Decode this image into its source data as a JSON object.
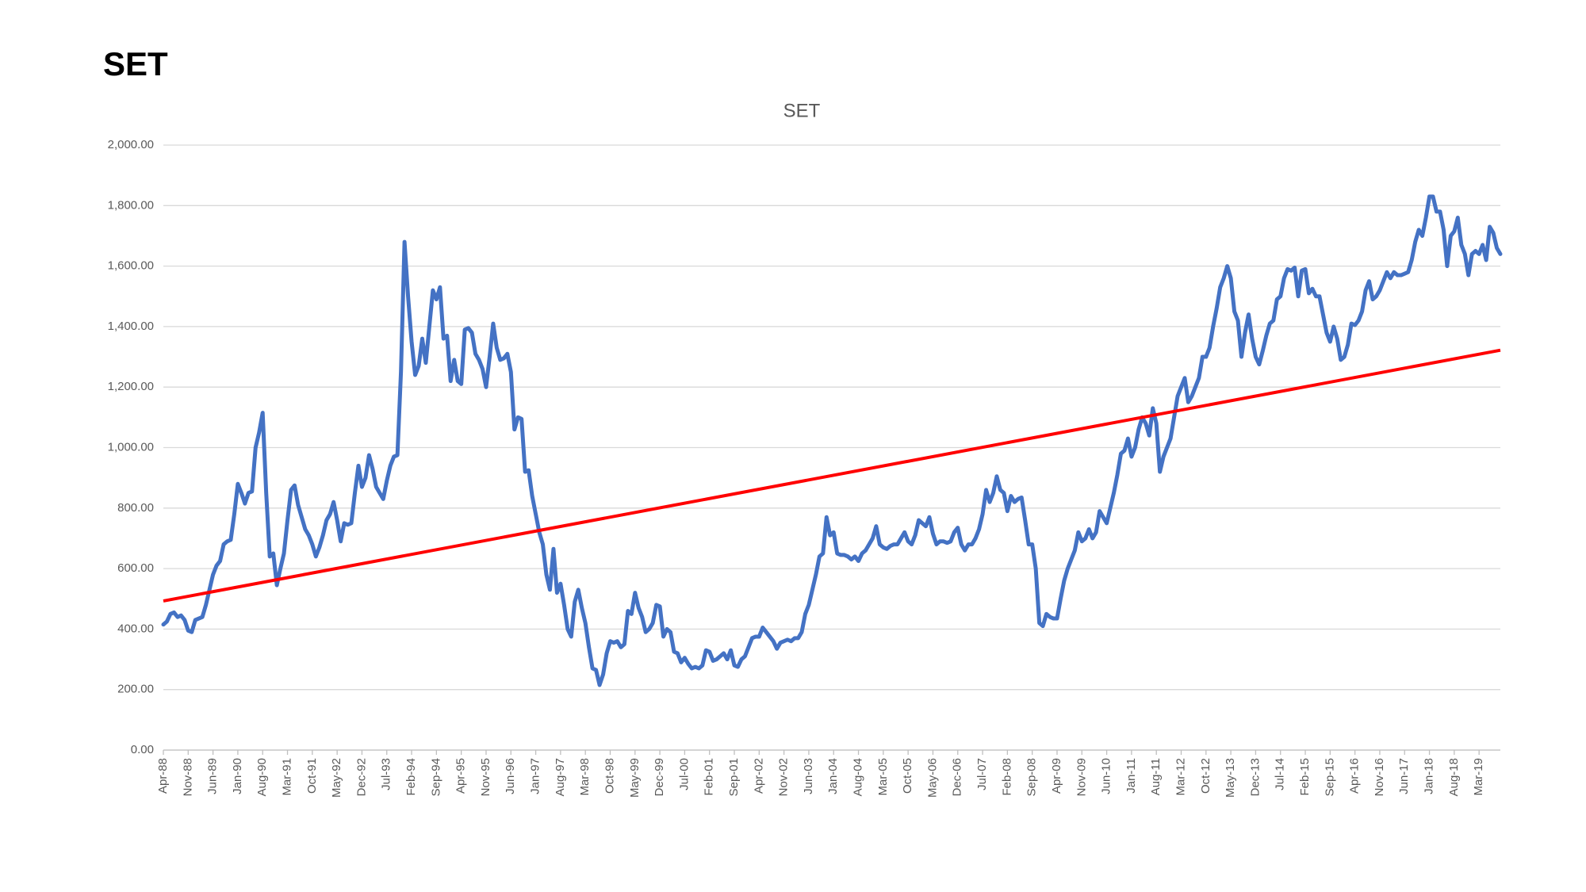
{
  "heading": "SET",
  "chart_data": {
    "type": "line",
    "title": "SET",
    "categories": [
      "Apr-88",
      null,
      null,
      null,
      null,
      null,
      null,
      "Nov-88",
      null,
      null,
      null,
      null,
      null,
      null,
      "Jun-89",
      null,
      null,
      null,
      null,
      null,
      null,
      "Jan-90",
      null,
      null,
      null,
      null,
      null,
      null,
      "Aug-90",
      null,
      null,
      null,
      null,
      null,
      null,
      "Mar-91",
      null,
      null,
      null,
      null,
      null,
      null,
      "Oct-91",
      null,
      null,
      null,
      null,
      null,
      null,
      "May-92",
      null,
      null,
      null,
      null,
      null,
      null,
      "Dec-92",
      null,
      null,
      null,
      null,
      null,
      null,
      "Jul-93",
      null,
      null,
      null,
      null,
      null,
      null,
      "Feb-94",
      null,
      null,
      null,
      null,
      null,
      null,
      "Sep-94",
      null,
      null,
      null,
      null,
      null,
      null,
      "Apr-95",
      null,
      null,
      null,
      null,
      null,
      null,
      "Nov-95",
      null,
      null,
      null,
      null,
      null,
      null,
      "Jun-96",
      null,
      null,
      null,
      null,
      null,
      null,
      "Jan-97",
      null,
      null,
      null,
      null,
      null,
      null,
      "Aug-97",
      null,
      null,
      null,
      null,
      null,
      null,
      "Mar-98",
      null,
      null,
      null,
      null,
      null,
      null,
      "Oct-98",
      null,
      null,
      null,
      null,
      null,
      null,
      "May-99",
      null,
      null,
      null,
      null,
      null,
      null,
      "Dec-99",
      null,
      null,
      null,
      null,
      null,
      null,
      "Jul-00",
      null,
      null,
      null,
      null,
      null,
      null,
      "Feb-01",
      null,
      null,
      null,
      null,
      null,
      null,
      "Sep-01",
      null,
      null,
      null,
      null,
      null,
      null,
      "Apr-02",
      null,
      null,
      null,
      null,
      null,
      null,
      "Nov-02",
      null,
      null,
      null,
      null,
      null,
      null,
      "Jun-03",
      null,
      null,
      null,
      null,
      null,
      null,
      "Jan-04",
      null,
      null,
      null,
      null,
      null,
      null,
      "Aug-04",
      null,
      null,
      null,
      null,
      null,
      null,
      "Mar-05",
      null,
      null,
      null,
      null,
      null,
      null,
      "Oct-05",
      null,
      null,
      null,
      null,
      null,
      null,
      "May-06",
      null,
      null,
      null,
      null,
      null,
      null,
      "Dec-06",
      null,
      null,
      null,
      null,
      null,
      null,
      "Jul-07",
      null,
      null,
      null,
      null,
      null,
      null,
      "Feb-08",
      null,
      null,
      null,
      null,
      null,
      null,
      "Sep-08",
      null,
      null,
      null,
      null,
      null,
      null,
      "Apr-09",
      null,
      null,
      null,
      null,
      null,
      null,
      "Nov-09",
      null,
      null,
      null,
      null,
      null,
      null,
      "Jun-10",
      null,
      null,
      null,
      null,
      null,
      null,
      "Jan-11",
      null,
      null,
      null,
      null,
      null,
      null,
      "Aug-11",
      null,
      null,
      null,
      null,
      null,
      null,
      "Mar-12",
      null,
      null,
      null,
      null,
      null,
      null,
      "Oct-12",
      null,
      null,
      null,
      null,
      null,
      null,
      "May-13",
      null,
      null,
      null,
      null,
      null,
      null,
      "Dec-13",
      null,
      null,
      null,
      null,
      null,
      null,
      "Jul-14",
      null,
      null,
      null,
      null,
      null,
      null,
      "Feb-15",
      null,
      null,
      null,
      null,
      null,
      null,
      "Sep-15",
      null,
      null,
      null,
      null,
      null,
      null,
      "Apr-16",
      null,
      null,
      null,
      null,
      null,
      null,
      "Nov-16",
      null,
      null,
      null,
      null,
      null,
      null,
      "Jun-17",
      null,
      null,
      null,
      null,
      null,
      null,
      "Jan-18",
      null,
      null,
      null,
      null,
      null,
      null,
      "Aug-18",
      null,
      null,
      null,
      null,
      null,
      null,
      "Mar-19",
      null,
      null,
      null,
      null,
      null,
      null
    ],
    "series": [
      {
        "color": "#4472c4",
        "values": [
          415,
          425,
          450,
          455,
          440,
          445,
          430,
          395,
          390,
          430,
          435,
          440,
          480,
          530,
          580,
          610,
          625,
          680,
          690,
          695,
          780,
          880,
          850,
          815,
          850,
          855,
          1000,
          1050,
          1115,
          850,
          640,
          650,
          545,
          600,
          650,
          760,
          860,
          875,
          810,
          770,
          730,
          710,
          680,
          640,
          670,
          710,
          760,
          780,
          820,
          760,
          690,
          750,
          745,
          750,
          850,
          940,
          870,
          900,
          975,
          930,
          870,
          850,
          830,
          890,
          940,
          970,
          975,
          1250,
          1680,
          1500,
          1350,
          1240,
          1270,
          1360,
          1280,
          1400,
          1520,
          1490,
          1530,
          1360,
          1370,
          1220,
          1290,
          1220,
          1210,
          1390,
          1395,
          1380,
          1310,
          1290,
          1260,
          1200,
          1300,
          1410,
          1330,
          1290,
          1295,
          1310,
          1250,
          1060,
          1100,
          1095,
          920,
          925,
          840,
          780,
          720,
          680,
          580,
          530,
          665,
          520,
          550,
          480,
          400,
          375,
          490,
          530,
          470,
          420,
          340,
          270,
          265,
          215,
          250,
          320,
          360,
          355,
          360,
          340,
          350,
          460,
          450,
          520,
          470,
          440,
          390,
          400,
          420,
          480,
          475,
          375,
          400,
          390,
          325,
          320,
          290,
          305,
          285,
          270,
          275,
          270,
          280,
          330,
          325,
          295,
          300,
          310,
          320,
          300,
          330,
          280,
          275,
          300,
          310,
          340,
          370,
          375,
          375,
          405,
          390,
          375,
          360,
          335,
          355,
          360,
          365,
          360,
          370,
          370,
          390,
          450,
          480,
          530,
          580,
          640,
          650,
          770,
          710,
          720,
          650,
          645,
          645,
          640,
          630,
          640,
          625,
          650,
          660,
          680,
          700,
          740,
          680,
          670,
          665,
          675,
          680,
          680,
          700,
          720,
          690,
          680,
          710,
          760,
          750,
          740,
          770,
          715,
          680,
          690,
          690,
          685,
          690,
          720,
          735,
          680,
          660,
          680,
          680,
          700,
          730,
          780,
          860,
          820,
          850,
          905,
          860,
          850,
          790,
          840,
          820,
          830,
          835,
          760,
          680,
          680,
          600,
          420,
          410,
          450,
          440,
          435,
          435,
          500,
          560,
          600,
          630,
          660,
          720,
          690,
          700,
          730,
          700,
          720,
          790,
          770,
          750,
          800,
          850,
          910,
          980,
          990,
          1030,
          970,
          1000,
          1060,
          1100,
          1080,
          1040,
          1130,
          1080,
          920,
          970,
          1000,
          1030,
          1100,
          1170,
          1200,
          1230,
          1150,
          1170,
          1200,
          1230,
          1300,
          1300,
          1330,
          1400,
          1460,
          1530,
          1560,
          1600,
          1560,
          1450,
          1420,
          1300,
          1380,
          1440,
          1360,
          1300,
          1275,
          1320,
          1370,
          1410,
          1420,
          1490,
          1500,
          1560,
          1590,
          1585,
          1595,
          1500,
          1585,
          1590,
          1510,
          1525,
          1500,
          1500,
          1440,
          1380,
          1350,
          1400,
          1360,
          1290,
          1300,
          1340,
          1410,
          1405,
          1420,
          1450,
          1520,
          1550,
          1490,
          1500,
          1520,
          1550,
          1580,
          1560,
          1580,
          1570,
          1570,
          1575,
          1580,
          1620,
          1680,
          1720,
          1700,
          1760,
          1830,
          1830,
          1780,
          1780,
          1720,
          1600,
          1700,
          1715,
          1760,
          1670,
          1640,
          1570,
          1640,
          1650,
          1640,
          1670,
          1620,
          1730,
          1710,
          1660,
          1640
        ]
      }
    ],
    "trendline": {
      "color": "#ff0000",
      "values": [
        493,
        1322
      ]
    },
    "ylim": [
      0,
      2000
    ],
    "yticks": [
      {
        "value": 0,
        "label": "0.00"
      },
      {
        "value": 200,
        "label": "200.00"
      },
      {
        "value": 400,
        "label": "400.00"
      },
      {
        "value": 600,
        "label": "600.00"
      },
      {
        "value": 800,
        "label": "800.00"
      },
      {
        "value": 1000,
        "label": "1,000.00"
      },
      {
        "value": 1200,
        "label": "1,200.00"
      },
      {
        "value": 1400,
        "label": "1,400.00"
      },
      {
        "value": 1600,
        "label": "1,600.00"
      },
      {
        "value": 1800,
        "label": "1,800.00"
      },
      {
        "value": 2000,
        "label": "2,000.00"
      }
    ],
    "grid": true
  }
}
